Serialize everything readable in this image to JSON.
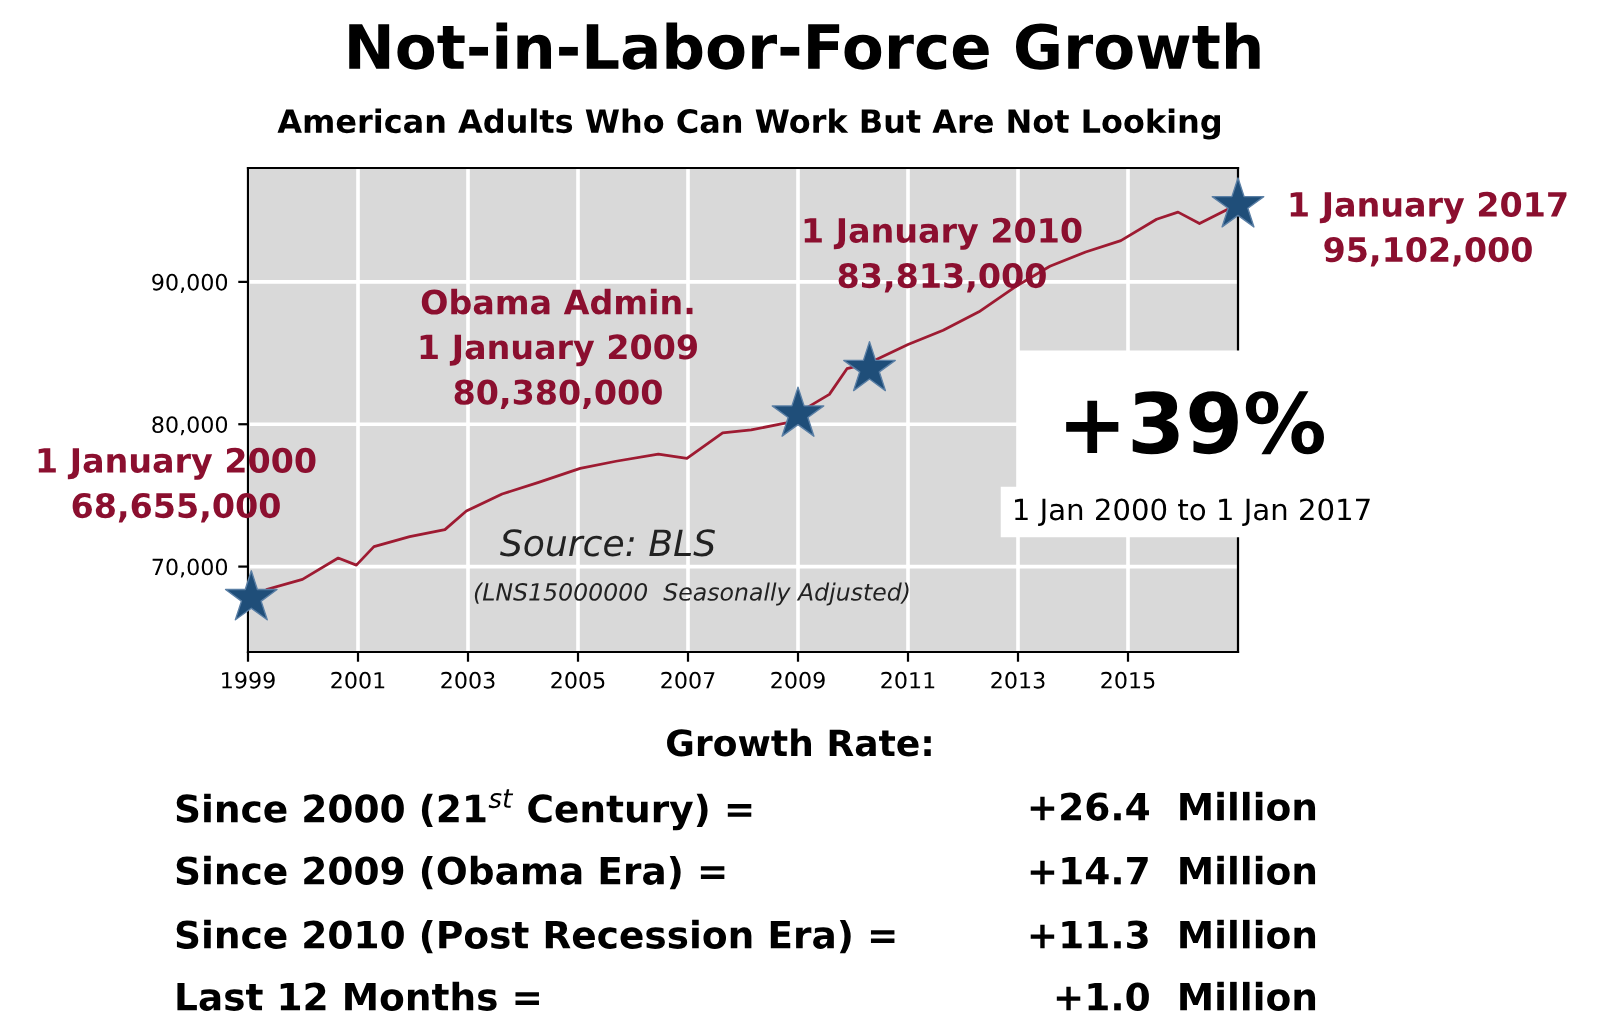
{
  "chart_data": {
    "type": "line",
    "title": "Not-in-Labor-Force Growth",
    "subtitle": "American Adults Who Can Work But Are Not Looking",
    "series": [
      {
        "color": "#9e1b32",
        "x": [
          1999.35,
          1999.99,
          2000.64,
          2000.97,
          2001.29,
          2001.94,
          2002.58,
          2002.97,
          2003.62,
          2004.27,
          2005.04,
          2005.69,
          2006.46,
          2006.98,
          2007.63,
          2008.15,
          2008.79,
          2009.05,
          2009.57,
          2009.89,
          2010.09,
          2010.35,
          2011.0,
          2011.64,
          2012.29,
          2012.93,
          2013.58,
          2014.23,
          2014.87,
          2015.52,
          2015.91,
          2016.3,
          2016.81
        ],
        "values": [
          68400,
          69100,
          70600,
          70100,
          71400,
          72100,
          72600,
          73900,
          75100,
          75900,
          76900,
          77400,
          77900,
          77600,
          79400,
          79600,
          80100,
          80900,
          82100,
          83900,
          84100,
          84400,
          85600,
          86600,
          87900,
          89600,
          91100,
          92100,
          92900,
          94400,
          94900,
          94100,
          95100
        ]
      },
      {
        "type": "scatter",
        "color": "#1f4e79",
        "marker": "star",
        "x": [
          1999.06,
          2009.0,
          2010.3,
          2017.0
        ],
        "values": [
          67800,
          80700,
          83900,
          95400
        ]
      }
    ],
    "xlim": [
      1999,
      2017
    ],
    "xticks": [
      1999,
      2001,
      2003,
      2005,
      2007,
      2009,
      2011,
      2013,
      2015
    ],
    "ylim": [
      64000,
      98000
    ],
    "yticks": [
      {
        "value": 70000,
        "label": "70,000"
      },
      {
        "value": 80000,
        "label": "80,000"
      },
      {
        "value": 90000,
        "label": "90,000"
      }
    ],
    "grid": true,
    "legend": false,
    "annotations": [
      "1 January 2000\n68,655,000",
      "Obama Admin.\n1 January 2009\n80,380,000",
      "1 January 2010\n83,813,000",
      "1 January 2017\n95,102,000",
      "+39%",
      "1 Jan 2000 to 1 Jan 2017",
      "Source: BLS",
      "(LNS15000000  Seasonally Adjusted)",
      "Growth Rate:",
      "Since 2000 (21$^{st}$ Century) =",
      "Since 2009 (Obama Era) =",
      "Since 2010 (Post Recession Era) =",
      "Last 12 Months =",
      "+26.4  Million",
      "+14.7  Million",
      "+11.3  Million",
      "+1.0  Million"
    ]
  }
}
